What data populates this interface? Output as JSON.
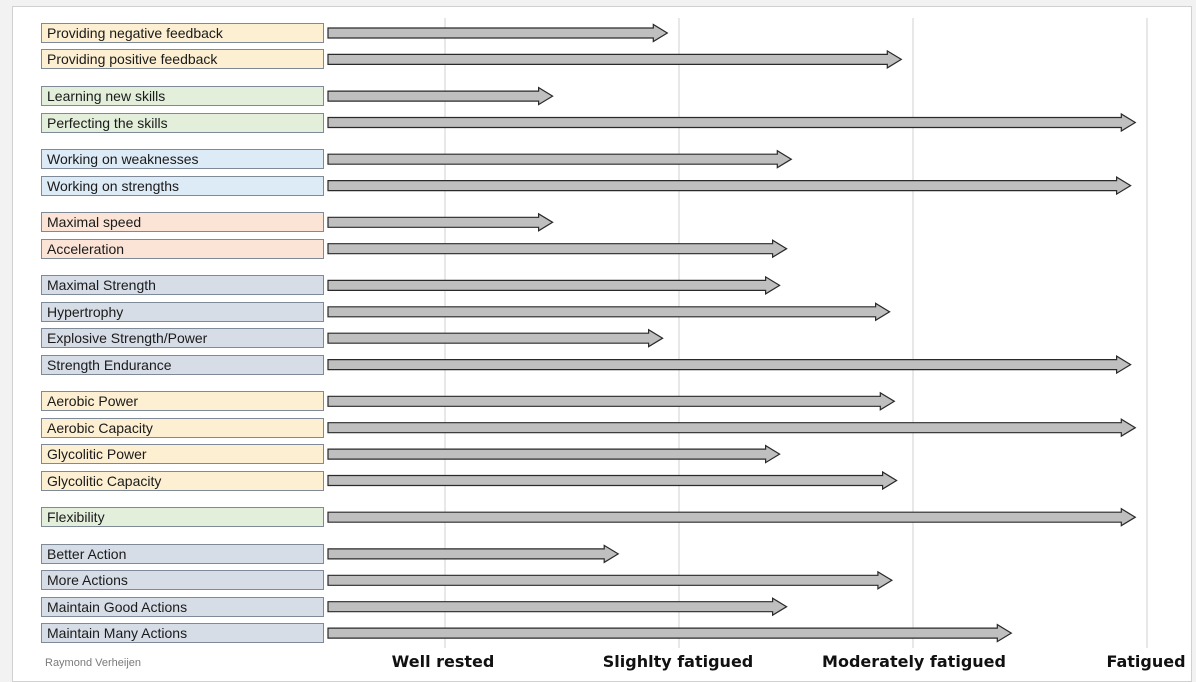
{
  "colors": {
    "feedback": "#fdefd2",
    "skills": "#e3efdb",
    "focus": "#ddebf6",
    "speed": "#fbe3d6",
    "strength": "#d7dde7",
    "energy": "#fdefd2",
    "flexibility": "#e3efdb",
    "actions": "#d7dde7",
    "arrow_fill": "#bfbfbf",
    "arrow_stroke": "#2a2a2a",
    "grid": "#d9d9d9"
  },
  "axis": {
    "labels": [
      "Well rested",
      "Slighlty fatigued",
      "Moderately fatigued",
      "Fatigued"
    ],
    "max": 3
  },
  "credit": "Raymond Verheijen",
  "groups": [
    {
      "color_key": "feedback",
      "items": [
        {
          "label": "Providing negative feedback",
          "extent": 1.45
        },
        {
          "label": "Providing positive feedback",
          "extent": 2.45
        }
      ]
    },
    {
      "color_key": "skills",
      "items": [
        {
          "label": "Learning new skills",
          "extent": 0.96
        },
        {
          "label": "Perfecting the skills",
          "extent": 3.45
        }
      ]
    },
    {
      "color_key": "focus",
      "items": [
        {
          "label": "Working on weaknesses",
          "extent": 1.98
        },
        {
          "label": "Working on strengths",
          "extent": 3.43
        }
      ]
    },
    {
      "color_key": "speed",
      "items": [
        {
          "label": "Maximal speed",
          "extent": 0.96
        },
        {
          "label": "Acceleration",
          "extent": 1.96
        }
      ]
    },
    {
      "color_key": "strength",
      "items": [
        {
          "label": "Maximal Strength",
          "extent": 1.93
        },
        {
          "label": "Hypertrophy",
          "extent": 2.4
        },
        {
          "label": "Explosive Strength/Power",
          "extent": 1.43
        },
        {
          "label": "Strength Endurance",
          "extent": 3.43
        }
      ]
    },
    {
      "color_key": "energy",
      "items": [
        {
          "label": "Aerobic Power",
          "extent": 2.42
        },
        {
          "label": "Aerobic Capacity",
          "extent": 3.45
        },
        {
          "label": "Glycolitic Power",
          "extent": 1.93
        },
        {
          "label": "Glycolitic Capacity",
          "extent": 2.43
        }
      ]
    },
    {
      "color_key": "flexibility",
      "items": [
        {
          "label": "Flexibility",
          "extent": 3.45
        }
      ]
    },
    {
      "color_key": "actions",
      "items": [
        {
          "label": "Better Action",
          "extent": 1.24
        },
        {
          "label": "More Actions",
          "extent": 2.41
        },
        {
          "label": "Maintain Good Actions",
          "extent": 1.96
        },
        {
          "label": "Maintain Many Actions",
          "extent": 2.92
        }
      ]
    }
  ]
}
